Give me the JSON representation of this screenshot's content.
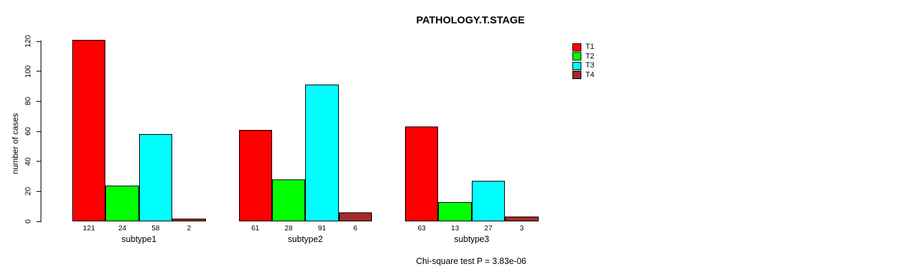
{
  "chart_data": {
    "type": "bar",
    "title": "PATHOLOGY.T.STAGE",
    "ylabel": "number of cases",
    "xlabel": "",
    "categories": [
      "subtype1",
      "subtype2",
      "subtype3"
    ],
    "series": [
      {
        "name": "T1",
        "color": "#FF0000",
        "values": [
          121,
          61,
          63
        ]
      },
      {
        "name": "T2",
        "color": "#00FF00",
        "values": [
          24,
          28,
          13
        ]
      },
      {
        "name": "T3",
        "color": "#00FFFF",
        "values": [
          58,
          91,
          27
        ]
      },
      {
        "name": "T4",
        "color": "#A52A2A",
        "values": [
          2,
          6,
          3
        ]
      }
    ],
    "yticks": [
      0,
      20,
      40,
      60,
      80,
      100,
      120
    ],
    "ylim": [
      0,
      120
    ],
    "grid": false,
    "show_value_labels": true,
    "legend": {
      "position": "top-right-outside",
      "entries": [
        "T1",
        "T2",
        "T3",
        "T4"
      ]
    },
    "note": "Chi-square test P = 3.83e-06"
  },
  "colors": {
    "background": "#FFFFFF",
    "axis": "#000000",
    "bar_border": "#000000",
    "text": "#000000"
  }
}
